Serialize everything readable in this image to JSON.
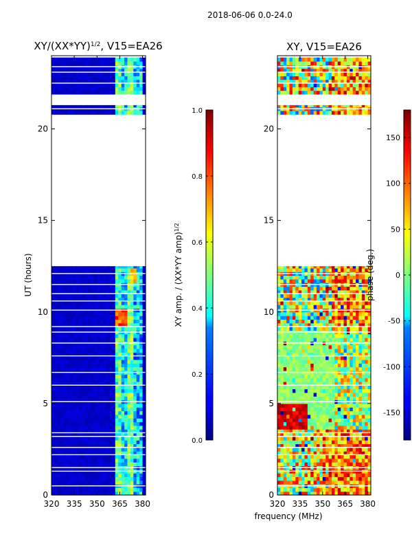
{
  "suptitle": "2018-06-06 0.0-24.0",
  "shared_xlabel": "frequency (MHz)",
  "chart_data": [
    {
      "type": "heatmap",
      "title_main": "XY/(XX*YY)",
      "title_sup": "1/2",
      "title_tail": ", V15=EA26",
      "xlabel": "",
      "ylabel": "UT (hours)",
      "xlim": [
        320,
        382
      ],
      "ylim": [
        0,
        24
      ],
      "x_ticks": [
        320,
        335,
        350,
        365,
        380
      ],
      "y_ticks": [
        0,
        5,
        10,
        15,
        20
      ],
      "data_blocks_hours": [
        [
          0.0,
          12.5
        ],
        [
          20.8,
          21.3
        ],
        [
          21.9,
          23.9
        ]
      ],
      "colorbar": {
        "label_main": "XY amp. / (XX*YY amp)",
        "label_sup": "1/2",
        "range": [
          0.0,
          1.0
        ],
        "ticks": [
          "0.0",
          "0.2",
          "0.4",
          "0.6",
          "0.8",
          "1.0"
        ]
      }
    },
    {
      "type": "heatmap",
      "title": "XY, V15=EA26",
      "xlabel": "frequency (MHz)",
      "ylabel": "",
      "xlim": [
        320,
        382
      ],
      "ylim": [
        0,
        24
      ],
      "x_ticks": [
        320,
        335,
        350,
        365,
        380
      ],
      "y_ticks": [
        0,
        5,
        10,
        15,
        20
      ],
      "data_blocks_hours": [
        [
          0.0,
          12.5
        ],
        [
          20.8,
          21.3
        ],
        [
          21.9,
          23.9
        ]
      ],
      "colorbar": {
        "label": "phase (deg.)",
        "range": [
          -180,
          180
        ],
        "ticks": [
          "-150",
          "-100",
          "-50",
          "0",
          "50",
          "100",
          "150"
        ]
      }
    }
  ]
}
